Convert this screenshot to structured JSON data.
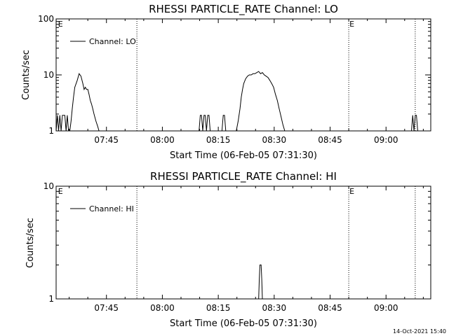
{
  "footer": {
    "timestamp": "14-Oct-2021 15:40"
  },
  "chart_data": [
    {
      "type": "line",
      "title": "RHESSI PARTICLE_RATE Channel: LO",
      "xlabel": "Start Time (06-Feb-05 07:31:30)",
      "ylabel": "Counts/sec",
      "y_scale": "log",
      "ylim": [
        1,
        100
      ],
      "y_ticks": [
        {
          "value": 1,
          "label": "1"
        },
        {
          "value": 10,
          "label": "10"
        },
        {
          "value": 100,
          "label": "100"
        }
      ],
      "xlim": [
        "07:31:30",
        "09:12:00"
      ],
      "x_ticks": [
        "07:45",
        "08:00",
        "08:15",
        "08:30",
        "08:45",
        "09:00"
      ],
      "legend": {
        "position": "top-left",
        "entries": [
          "Channel: LO"
        ]
      },
      "event_markers": [
        {
          "time": "07:31:50",
          "label": "E",
          "line": false
        },
        {
          "time": "07:53:10",
          "label": "",
          "line": true
        },
        {
          "time": "08:50:00",
          "label": "E",
          "line": true
        },
        {
          "time": "09:07:50",
          "label": "",
          "line": true
        }
      ],
      "series": [
        {
          "name": "Channel: LO",
          "x": [
            "07:31:30",
            "07:31:50",
            "07:32:10",
            "07:32:30",
            "07:32:50",
            "07:33:10",
            "07:33:30",
            "07:33:50",
            "07:34:10",
            "07:34:30",
            "07:34:50",
            "07:35:10",
            "07:35:30",
            "07:35:50",
            "07:36:10",
            "07:36:30",
            "07:37:10",
            "07:37:40",
            "07:38:10",
            "07:38:40",
            "07:39:00",
            "07:39:20",
            "07:39:40",
            "07:40:00",
            "07:40:20",
            "07:40:40",
            "07:41:00",
            "07:41:20",
            "07:41:40",
            "07:42:10",
            "07:42:40",
            "07:43:00",
            "07:43:20",
            "08:09:50",
            "08:10:10",
            "08:10:30",
            "08:10:50",
            "08:11:10",
            "08:11:30",
            "08:11:50",
            "08:12:10",
            "08:12:30",
            "08:12:50",
            "08:16:00",
            "08:16:20",
            "08:16:40",
            "08:17:00",
            "08:17:30",
            "08:18:10",
            "08:18:50",
            "08:19:20",
            "08:19:50",
            "08:20:20",
            "08:20:50",
            "08:21:10",
            "08:21:30",
            "08:21:50",
            "08:22:20",
            "08:22:50",
            "08:23:20",
            "08:23:50",
            "08:24:20",
            "08:24:50",
            "08:25:20",
            "08:25:50",
            "08:26:20",
            "08:26:50",
            "08:27:20",
            "08:27:50",
            "08:28:20",
            "08:28:50",
            "08:29:20",
            "08:29:50",
            "08:30:20",
            "08:30:50",
            "08:31:20",
            "08:31:50",
            "08:32:20",
            "08:32:50",
            "08:33:20",
            "08:33:50",
            "08:34:20",
            "08:34:50",
            "08:35:20",
            "08:35:40",
            "09:06:50",
            "09:07:10",
            "09:07:30",
            "09:07:50",
            "09:08:10",
            "09:08:30",
            "09:08:50",
            "09:09:10"
          ],
          "y": [
            1.0,
            1.9,
            1.0,
            1.9,
            1.0,
            1.9,
            1.9,
            1.9,
            1.0,
            1.9,
            1.0,
            1.0,
            1.5,
            2.5,
            4.0,
            6.0,
            8.0,
            10.5,
            9.5,
            7.0,
            5.5,
            6.0,
            5.5,
            5.5,
            4.5,
            3.5,
            3.0,
            2.5,
            2.0,
            1.5,
            1.2,
            1.0,
            1.0,
            1.0,
            1.9,
            1.9,
            1.0,
            1.9,
            1.9,
            1.0,
            1.9,
            1.9,
            1.0,
            1.0,
            1.9,
            1.9,
            1.0,
            1.0,
            1.0,
            1.0,
            1.0,
            1.0,
            1.5,
            2.5,
            4.0,
            5.5,
            7.0,
            8.5,
            9.5,
            10.0,
            10.0,
            10.5,
            10.5,
            11.0,
            11.5,
            10.5,
            11.0,
            10.0,
            9.5,
            9.0,
            8.0,
            7.0,
            6.0,
            4.5,
            3.5,
            2.5,
            1.8,
            1.3,
            1.0,
            1.0,
            1.0,
            1.0,
            1.0,
            1.0,
            1.0,
            1.0,
            1.9,
            1.0,
            1.9,
            1.9,
            1.0,
            1.0,
            1.0
          ]
        }
      ]
    },
    {
      "type": "line",
      "title": "RHESSI PARTICLE_RATE Channel: HI",
      "xlabel": "Start Time (06-Feb-05 07:31:30)",
      "ylabel": "Counts/sec",
      "y_scale": "log",
      "ylim": [
        1,
        10
      ],
      "y_ticks": [
        {
          "value": 1,
          "label": "1"
        },
        {
          "value": 10,
          "label": "10"
        }
      ],
      "xlim": [
        "07:31:30",
        "09:12:00"
      ],
      "x_ticks": [
        "07:45",
        "08:00",
        "08:15",
        "08:30",
        "08:45",
        "09:00"
      ],
      "legend": {
        "position": "top-left",
        "entries": [
          "Channel: HI"
        ]
      },
      "event_markers": [
        {
          "time": "07:31:50",
          "label": "E",
          "line": false
        },
        {
          "time": "07:53:10",
          "label": "",
          "line": true
        },
        {
          "time": "08:50:00",
          "label": "E",
          "line": true
        },
        {
          "time": "09:07:50",
          "label": "",
          "line": true
        }
      ],
      "series": [
        {
          "name": "Channel: HI",
          "x": [
            "07:31:30",
            "08:25:40",
            "08:25:50",
            "08:26:00",
            "08:26:10",
            "08:26:30",
            "08:26:40",
            "08:26:50",
            "08:27:00",
            "09:12:00"
          ],
          "y": [
            1.0,
            1.0,
            1.0,
            1.5,
            2.0,
            2.0,
            1.5,
            1.0,
            1.0,
            1.0
          ]
        }
      ]
    }
  ]
}
